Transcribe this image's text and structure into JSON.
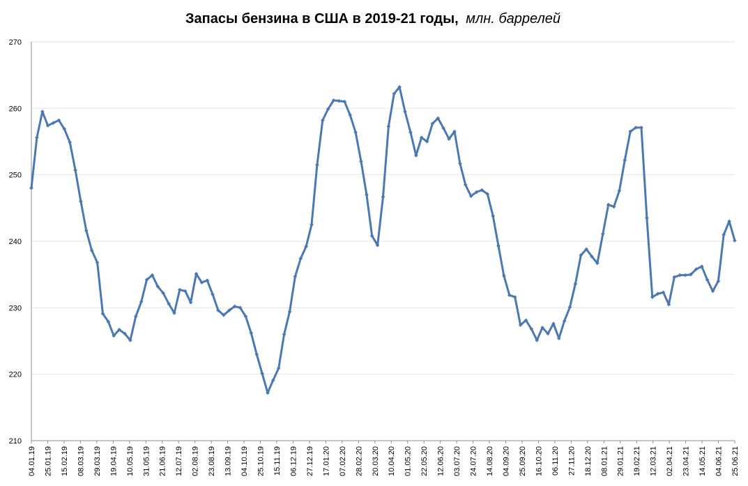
{
  "chart_data": {
    "type": "line",
    "title": "Запасы бензина в США в 2019-21 годы,",
    "title_unit": "млн. баррелей",
    "xlabel": "",
    "ylabel": "",
    "ylim": [
      210,
      270
    ],
    "yticks": [
      210,
      220,
      230,
      240,
      250,
      260,
      270
    ],
    "grid": true,
    "legend": "none",
    "colors": {
      "series": "#4a78b5",
      "grid": "#e6e6e6",
      "axis": "#8c8c8c"
    },
    "x_tick_labels": [
      "04.01.19",
      "25.01.19",
      "15.02.19",
      "08.03.19",
      "29.03.19",
      "19.04.19",
      "10.05.19",
      "31.05.19",
      "21.06.19",
      "12.07.19",
      "02.08.19",
      "23.08.19",
      "13.09.19",
      "04.10.19",
      "25.10.19",
      "15.11.19",
      "06.12.19",
      "27.12.19",
      "17.01.20",
      "07.02.20",
      "28.02.20",
      "20.03.20",
      "10.04.20",
      "01.05.20",
      "22.05.20",
      "12.06.20",
      "03.07.20",
      "24.07.20",
      "14.08.20",
      "04.09.20",
      "25.09.20",
      "16.10.20",
      "06.11.20",
      "27.11.20",
      "18.12.20",
      "08.01.21",
      "29.01.21",
      "19.02.21",
      "12.03.21",
      "02.04.21",
      "23.04.21",
      "14.05.21",
      "04.06.21",
      "25.06.21"
    ],
    "series": [
      {
        "values": [
          248.0,
          255.6,
          259.5,
          257.4,
          257.8,
          258.2,
          256.9,
          254.9,
          250.7,
          246.0,
          241.6,
          238.6,
          236.8,
          229.1,
          227.9,
          225.8,
          226.7,
          226.1,
          225.1,
          228.7,
          230.9,
          234.2,
          234.9,
          233.2,
          232.2,
          230.6,
          229.2,
          232.7,
          232.5,
          230.8,
          235.1,
          233.8,
          234.1,
          232.0,
          229.6,
          228.9,
          229.6,
          230.2,
          230.0,
          228.7,
          226.2,
          223.0,
          220.1,
          217.2,
          219.1,
          220.9,
          226.0,
          229.4,
          234.7,
          237.4,
          239.2,
          242.5,
          251.5,
          258.2,
          259.9,
          261.2,
          261.1,
          261.0,
          259.0,
          256.4,
          252.0,
          247.0,
          240.8,
          239.4,
          246.7,
          257.3,
          262.2,
          263.2,
          259.5,
          256.4,
          252.9,
          255.6,
          255.0,
          257.7,
          258.5,
          257.0,
          255.4,
          256.5,
          251.7,
          248.5,
          246.8,
          247.4,
          247.7,
          247.1,
          243.8,
          239.3,
          234.8,
          231.9,
          231.6,
          227.4,
          228.1,
          226.8,
          225.1,
          227.0,
          226.1,
          227.6,
          225.4,
          228.0,
          230.1,
          233.6,
          237.9,
          238.8,
          237.7,
          236.7,
          241.1,
          245.5,
          245.2,
          247.6,
          252.2,
          256.5,
          257.1,
          257.1,
          243.5,
          231.6,
          232.1,
          232.3,
          230.5,
          234.6,
          234.9,
          234.9,
          235.0,
          235.8,
          236.2,
          234.2,
          232.5,
          234.0,
          241.0,
          243.0,
          240.1
        ]
      }
    ]
  }
}
